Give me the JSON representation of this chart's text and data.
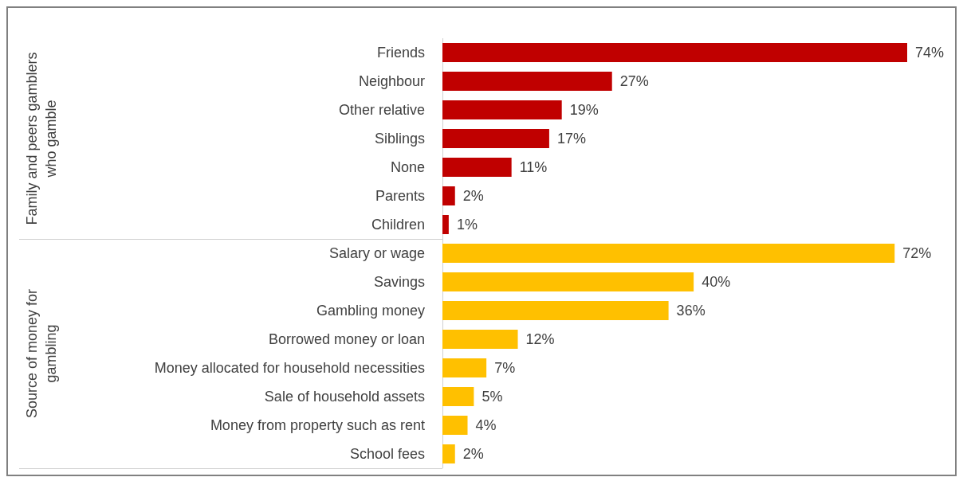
{
  "chart_data": [
    {
      "type": "bar",
      "orientation": "horizontal",
      "ylabel": "Family and peers gamblers who gamble",
      "categories": [
        "Friends",
        "Neighbour",
        "Other relative",
        "Siblings",
        "None",
        "Parents",
        "Children"
      ],
      "values": [
        74,
        27,
        19,
        17,
        11,
        2,
        1
      ],
      "value_labels": [
        "74%",
        "27%",
        "19%",
        "17%",
        "11%",
        "2%",
        "1%"
      ],
      "color": "#c00000"
    },
    {
      "type": "bar",
      "orientation": "horizontal",
      "ylabel": "Source of money for gambling",
      "categories": [
        "Salary or wage",
        "Savings",
        "Gambling money",
        "Borrowed money or loan",
        "Money allocated for household necessities",
        "Sale of household assets",
        "Money from property such as rent",
        "School fees"
      ],
      "values": [
        72,
        40,
        36,
        12,
        7,
        5,
        4,
        2
      ],
      "value_labels": [
        "72%",
        "40%",
        "36%",
        "12%",
        "7%",
        "5%",
        "4%",
        "2%"
      ],
      "color": "#ffc000"
    }
  ]
}
